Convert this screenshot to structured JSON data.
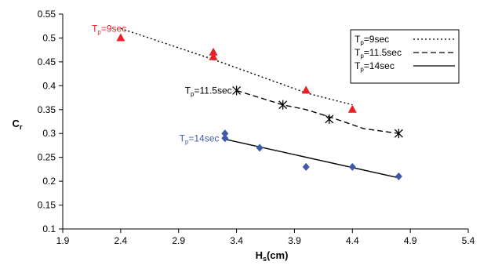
{
  "chart_data": {
    "type": "scatter",
    "title": "",
    "xlabel": {
      "main": "H",
      "sub": "s",
      "rest": "(cm)"
    },
    "ylabel": {
      "main": "C",
      "sub": "r",
      "rest": ""
    },
    "xlim": [
      1.9,
      5.4
    ],
    "ylim": [
      0.1,
      0.55
    ],
    "x_ticks": [
      "1.9",
      "2.4",
      "2.9",
      "3.4",
      "3.9",
      "4.4",
      "4.9",
      "5.4"
    ],
    "y_ticks": [
      "0.1",
      "0.15",
      "0.2",
      "0.25",
      "0.3",
      "0.35",
      "0.4",
      "0.45",
      "0.5",
      "0.55"
    ],
    "grid": false,
    "legend_position": "top-right",
    "series": [
      {
        "name": {
          "main": "T",
          "sub": "p",
          "rest": "=9sec"
        },
        "marker": "triangle",
        "color": "#ee1c24",
        "line_style": "dotted",
        "points": [
          {
            "x": 2.4,
            "y": 0.5
          },
          {
            "x": 3.2,
            "y": 0.47
          },
          {
            "x": 3.2,
            "y": 0.46
          },
          {
            "x": 4.0,
            "y": 0.39
          },
          {
            "x": 4.4,
            "y": 0.35
          }
        ],
        "trend": [
          {
            "x": 2.4,
            "y": 0.52
          },
          {
            "x": 3.2,
            "y": 0.455
          },
          {
            "x": 4.0,
            "y": 0.385
          },
          {
            "x": 4.4,
            "y": 0.36
          }
        ],
        "annotation": {
          "main": "T",
          "sub": "p",
          "rest": "=9sec",
          "x": 2.45,
          "y": 0.52,
          "color": "#ee1c24"
        }
      },
      {
        "name": {
          "main": "T",
          "sub": "p",
          "rest": "=11.5sec"
        },
        "marker": "asterisk",
        "color": "#000000",
        "line_style": "dashed",
        "points": [
          {
            "x": 3.4,
            "y": 0.39
          },
          {
            "x": 3.8,
            "y": 0.36
          },
          {
            "x": 4.2,
            "y": 0.33
          },
          {
            "x": 4.8,
            "y": 0.3
          }
        ],
        "trend": [
          {
            "x": 3.4,
            "y": 0.39
          },
          {
            "x": 3.8,
            "y": 0.36
          },
          {
            "x": 4.0,
            "y": 0.35
          },
          {
            "x": 4.2,
            "y": 0.335
          },
          {
            "x": 4.5,
            "y": 0.31
          },
          {
            "x": 4.8,
            "y": 0.3
          }
        ],
        "annotation": {
          "main": "T",
          "sub": "p",
          "rest": "=11.5sec",
          "x": 3.36,
          "y": 0.39,
          "color": "#000000"
        }
      },
      {
        "name": {
          "main": "T",
          "sub": "p",
          "rest": "=14sec"
        },
        "marker": "diamond",
        "color": "#3e59a8",
        "line_style": "solid",
        "points": [
          {
            "x": 3.3,
            "y": 0.3
          },
          {
            "x": 3.3,
            "y": 0.29
          },
          {
            "x": 3.6,
            "y": 0.27
          },
          {
            "x": 4.0,
            "y": 0.23
          },
          {
            "x": 4.4,
            "y": 0.23
          },
          {
            "x": 4.8,
            "y": 0.21
          }
        ],
        "trend": [
          {
            "x": 3.3,
            "y": 0.288
          },
          {
            "x": 4.8,
            "y": 0.207
          }
        ],
        "annotation": {
          "main": "T",
          "sub": "p",
          "rest": "=14sec",
          "x": 3.25,
          "y": 0.29,
          "color": "#3e59a8"
        }
      }
    ]
  }
}
